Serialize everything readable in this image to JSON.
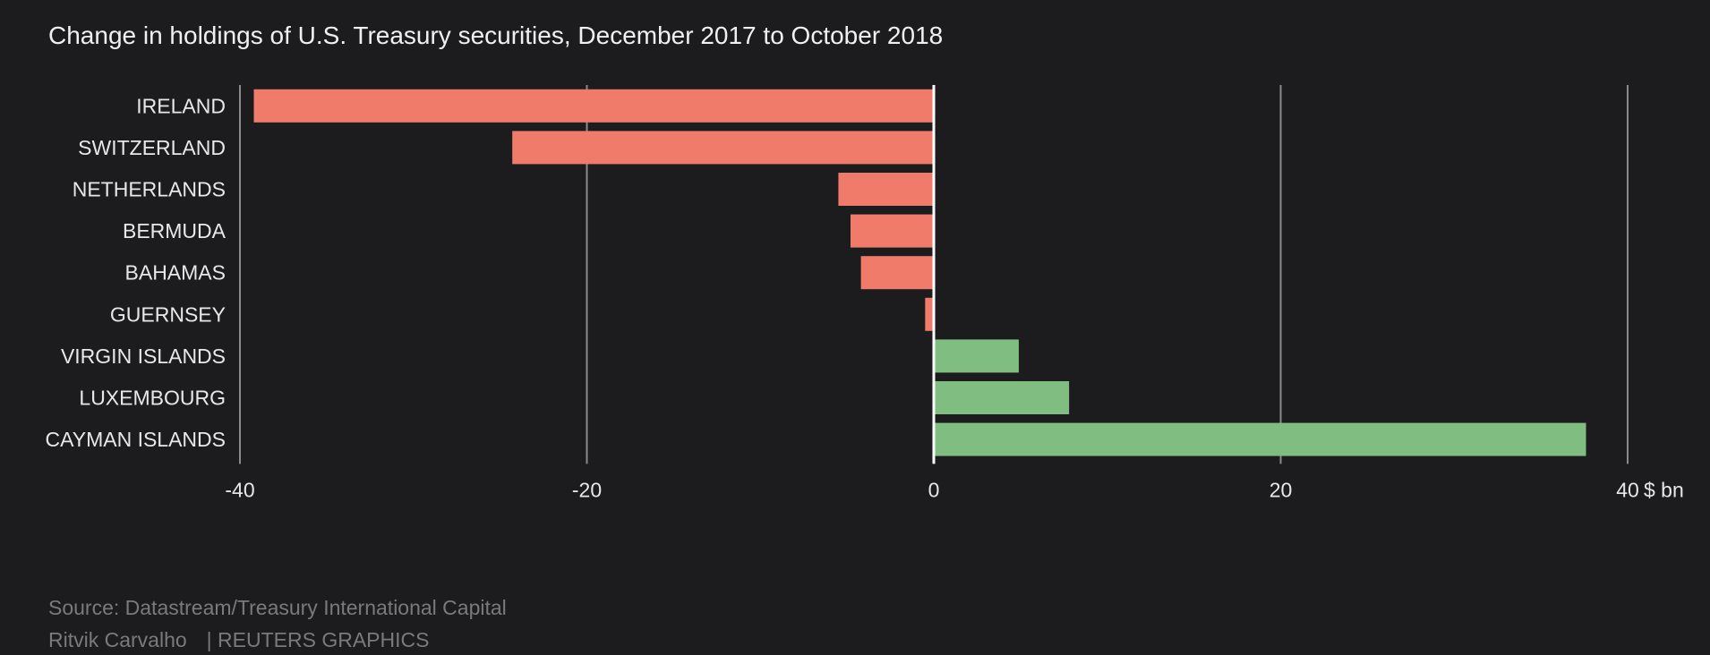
{
  "chart_data": {
    "type": "bar",
    "orientation": "horizontal",
    "title": "Change in holdings of U.S. Treasury securities, December 2017 to October 2018",
    "unit_label": "$ bn",
    "categories": [
      "IRELAND",
      "SWITZERLAND",
      "NETHERLANDS",
      "BERMUDA",
      "BAHAMAS",
      "GUERNSEY",
      "VIRGIN ISLANDS",
      "LUXEMBOURG",
      "CAYMAN ISLANDS"
    ],
    "values": [
      -39.2,
      -24.3,
      -5.5,
      -4.8,
      -4.2,
      -0.5,
      4.9,
      7.8,
      37.6
    ],
    "xlim": [
      -40,
      40
    ],
    "xticks": [
      -40,
      -20,
      0,
      20,
      40
    ],
    "xtick_labels": [
      "-40",
      "-20",
      "0",
      "20",
      "40"
    ],
    "grid": true,
    "colors": {
      "negative": "#f17b6b",
      "positive": "#80bd80",
      "grid": "#8a8a8a",
      "zero_line": "#ffffff"
    }
  },
  "footer": {
    "source": "Source: Datastream/Treasury International Capital",
    "author": "Ritvik Carvalho",
    "brand": "| REUTERS GRAPHICS"
  }
}
